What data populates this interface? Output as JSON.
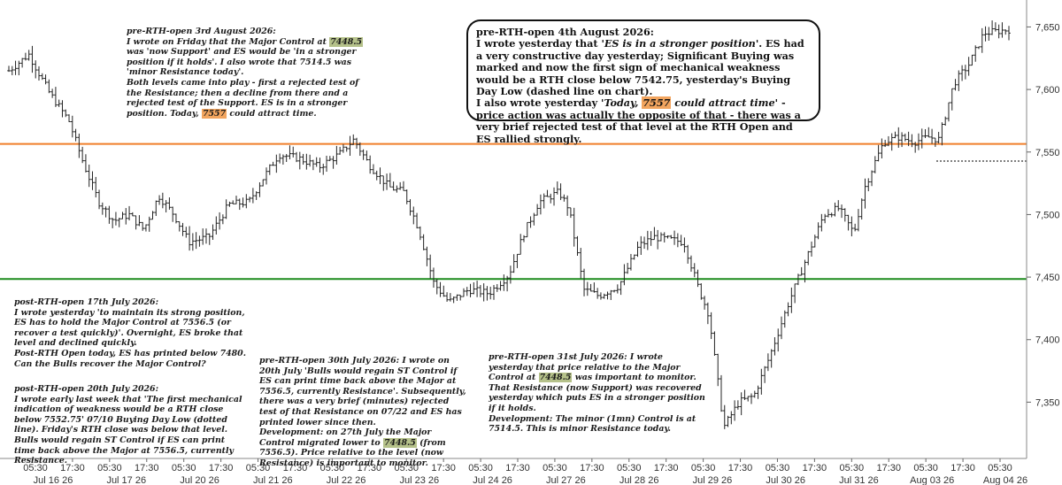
{
  "chart_data": {
    "type": "candlestick",
    "instrument": "ES",
    "y_range": [
      7305,
      7668
    ],
    "y_ticks": [
      "7,350",
      "7,400",
      "7,450",
      "7,500",
      "7,550",
      "7,600",
      "7,650"
    ],
    "y_tick_values": [
      7350,
      7400,
      7450,
      7500,
      7550,
      7600,
      7650
    ],
    "x_time_labels": [
      "05:30",
      "17:30",
      "05:30",
      "17:30",
      "05:30",
      "17:30",
      "05:30",
      "17:30",
      "05:30",
      "17:30",
      "05:30",
      "17:30",
      "05:30",
      "17:30",
      "05:30",
      "17:30",
      "05:30",
      "17:30",
      "05:30",
      "17:30",
      "05:30",
      "17:30",
      "05:30",
      "17:30",
      "05:30",
      "17:30",
      "05:30"
    ],
    "x_date_labels": [
      "Jul 16 26",
      "Jul 17 26",
      "Jul 20 26",
      "Jul 21 26",
      "Jul 22 26",
      "Jul 23 26",
      "Jul 24 26",
      "Jul 27 26",
      "Jul 28 26",
      "Jul 29 26",
      "Jul 30 26",
      "Jul 31 26",
      "Aug 03 26",
      "Aug 04 26"
    ],
    "levels": [
      {
        "value": 7556.5,
        "color": "#f07f2a",
        "style": "solid"
      },
      {
        "value": 7448.5,
        "color": "#1e8c1e",
        "style": "solid"
      },
      {
        "value": 7542.75,
        "color": "#555555",
        "style": "dotted"
      }
    ],
    "price_path": [
      [
        0.0,
        7615
      ],
      [
        0.02,
        7628
      ],
      [
        0.04,
        7598
      ],
      [
        0.06,
        7575
      ],
      [
        0.075,
        7540
      ],
      [
        0.09,
        7510
      ],
      [
        0.105,
        7495
      ],
      [
        0.12,
        7500
      ],
      [
        0.135,
        7488
      ],
      [
        0.15,
        7515
      ],
      [
        0.165,
        7500
      ],
      [
        0.18,
        7478
      ],
      [
        0.2,
        7482
      ],
      [
        0.22,
        7508
      ],
      [
        0.24,
        7510
      ],
      [
        0.255,
        7530
      ],
      [
        0.27,
        7548
      ],
      [
        0.29,
        7545
      ],
      [
        0.31,
        7538
      ],
      [
        0.33,
        7548
      ],
      [
        0.345,
        7560
      ],
      [
        0.36,
        7540
      ],
      [
        0.38,
        7522
      ],
      [
        0.395,
        7518
      ],
      [
        0.41,
        7488
      ],
      [
        0.425,
        7445
      ],
      [
        0.44,
        7430
      ],
      [
        0.46,
        7440
      ],
      [
        0.48,
        7437
      ],
      [
        0.5,
        7452
      ],
      [
        0.515,
        7485
      ],
      [
        0.53,
        7510
      ],
      [
        0.55,
        7518
      ],
      [
        0.56,
        7505
      ],
      [
        0.575,
        7440
      ],
      [
        0.59,
        7435
      ],
      [
        0.61,
        7443
      ],
      [
        0.63,
        7475
      ],
      [
        0.645,
        7482
      ],
      [
        0.66,
        7480
      ],
      [
        0.675,
        7478
      ],
      [
        0.69,
        7440
      ],
      [
        0.7,
        7420
      ],
      [
        0.715,
        7330
      ],
      [
        0.73,
        7350
      ],
      [
        0.745,
        7355
      ],
      [
        0.76,
        7385
      ],
      [
        0.78,
        7430
      ],
      [
        0.8,
        7470
      ],
      [
        0.815,
        7500
      ],
      [
        0.83,
        7505
      ],
      [
        0.845,
        7485
      ],
      [
        0.855,
        7520
      ],
      [
        0.865,
        7540
      ],
      [
        0.875,
        7558
      ],
      [
        0.89,
        7562
      ],
      [
        0.905,
        7558
      ],
      [
        0.92,
        7562
      ],
      [
        0.93,
        7560
      ],
      [
        0.945,
        7605
      ],
      [
        0.96,
        7620
      ],
      [
        0.975,
        7645
      ],
      [
        1.0,
        7648
      ]
    ]
  },
  "notes": {
    "n1": {
      "title": "pre-RTH-open 3rd August 2026:",
      "p1a": "I wrote on Friday that the Major Control at ",
      "p1b": "7448.5",
      "p1c": " was 'now Support' and ES would be 'in a stronger position if it holds'. I also wrote that 7514.5 was 'minor Resistance today'.",
      "p2": "Both levels came into play - first a rejected test of the Resistance; then a decline from there and a rejected test of the Support. ES is in a stronger position. Today, ",
      "p2b": "7557",
      "p2c": " could attract time."
    },
    "n2": {
      "title": "pre-RTH-open 4th August 2026:",
      "p1a": "I wrote yesterday that '",
      "p1b": "ES is in a stronger position",
      "p1c": "'. ES had a very constructive day yesterday; Significant Buying was marked and now the first sign of mechanical weakness would be a RTH close below 7542.75, yesterday's Buying Day Low (dashed line on chart).",
      "p2a": "I also wrote yesterday '",
      "p2b": "Today, ",
      "p2c": "7557",
      "p2d": " could attract time",
      "p2e": "' - price action was actually the opposite of that - there was a very brief rejected test of that level at the RTH Open and ES rallied strongly."
    },
    "n3": {
      "text": "post-RTH-open 17th July 2026:\nI wrote yesterday 'to maintain its strong position, ES has to hold the Major Control at 7556.5 (or recover a test quickly)'. Overnight, ES broke that level and declined quickly.\nPost-RTH Open today, ES has printed below 7480. Can the Bulls recover the Major Control?"
    },
    "n4": {
      "text": "post-RTH-open 20th July 2026:\nI wrote early last week that 'The first mechanical indication of weakness would be a RTH close below 7552.75' 07/10 Buying Day Low (dotted line). Friday's RTH close was below that level. Bulls would regain ST Control if ES can print time back above the Major at 7556.5, currently Resistance."
    },
    "n5": {
      "a": "pre-RTH-open 30th July 2026: I wrote on 20th July 'Bulls would regain ST Control if ES can print time back above the Major at 7556.5, currently Resistance'. Subsequently, there was a very brief (minutes) rejected test of that Resistance on 07/22 and ES has printed lower since then.\nDevelopment: on 27th July the Major Control migrated lower to ",
      "b": "7448.5",
      "c": " (from 7556.5). Price relative to the level (now Resistance) is important to monitor."
    },
    "n6": {
      "a": "pre-RTH-open 31st July 2026: I wrote yesterday that price relative to the Major Control at ",
      "b": "7448.5",
      "c": " was important to monitor. That Resistance (now Support) was recovered yesterday which puts ES in a stronger position if it holds.\nDevelopment: The minor (1mn) Control is at 7514.5. This is minor Resistance today."
    }
  },
  "colors": {
    "major_control_old": "#f07f2a",
    "major_control_new": "#1e8c1e",
    "highlight_green": "#b5c18a",
    "highlight_orange": "#f2a55f"
  }
}
